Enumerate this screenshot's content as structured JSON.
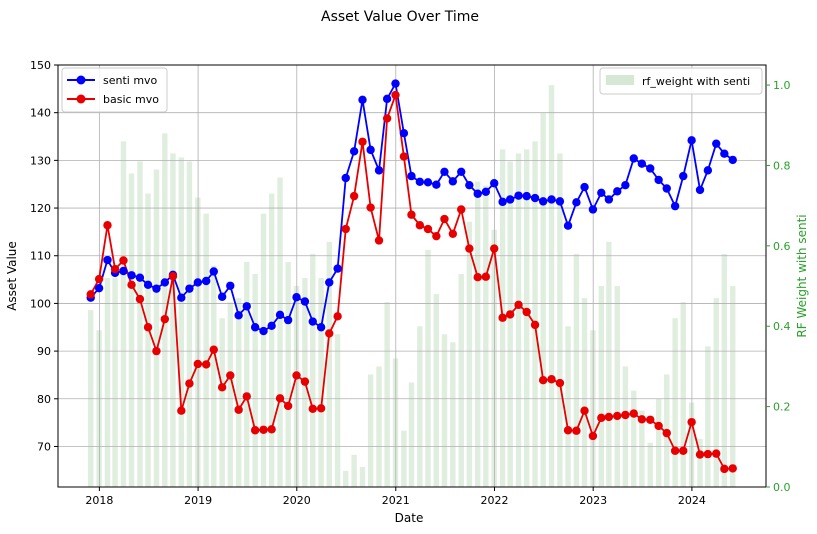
{
  "chart_data": {
    "type": "line",
    "title": "Asset Value Over Time",
    "xlabel": "Date",
    "ylabel": "Asset Value",
    "y2label": "RF Weight with senti",
    "ylim": [
      61.5,
      150
    ],
    "y2lim": [
      0,
      1.05
    ],
    "xlim": [
      "2017-08-01",
      "2024-10-01"
    ],
    "grid": true,
    "x_ticks": [
      {
        "date": "2018-01-01",
        "label": "2018"
      },
      {
        "date": "2019-01-01",
        "label": "2019"
      },
      {
        "date": "2020-01-01",
        "label": "2020"
      },
      {
        "date": "2021-01-01",
        "label": "2021"
      },
      {
        "date": "2022-01-01",
        "label": "2022"
      },
      {
        "date": "2023-01-01",
        "label": "2023"
      },
      {
        "date": "2024-01-01",
        "label": "2024"
      }
    ],
    "y_ticks": [
      70,
      80,
      90,
      100,
      110,
      120,
      130,
      140,
      150
    ],
    "y2_ticks": [
      {
        "value": 0.0,
        "label": "0.0"
      },
      {
        "value": 0.2,
        "label": "0.2"
      },
      {
        "value": 0.4,
        "label": "0.4"
      },
      {
        "value": 0.6,
        "label": "0.6"
      },
      {
        "value": 0.8,
        "label": "0.8"
      },
      {
        "value": 1.0,
        "label": "1.0"
      }
    ],
    "dates": [
      "2017-11-30",
      "2017-12-31",
      "2018-01-31",
      "2018-02-28",
      "2018-03-31",
      "2018-04-30",
      "2018-05-31",
      "2018-06-30",
      "2018-07-31",
      "2018-08-31",
      "2018-09-30",
      "2018-10-31",
      "2018-11-30",
      "2018-12-31",
      "2019-01-31",
      "2019-02-28",
      "2019-03-31",
      "2019-04-30",
      "2019-05-31",
      "2019-06-30",
      "2019-07-31",
      "2019-08-31",
      "2019-09-30",
      "2019-10-31",
      "2019-11-30",
      "2019-12-31",
      "2020-01-31",
      "2020-02-29",
      "2020-03-31",
      "2020-04-30",
      "2020-05-31",
      "2020-06-30",
      "2020-07-31",
      "2020-08-31",
      "2020-09-30",
      "2020-10-31",
      "2020-11-30",
      "2020-12-31",
      "2021-01-31",
      "2021-02-28",
      "2021-03-31",
      "2021-04-30",
      "2021-05-31",
      "2021-06-30",
      "2021-07-31",
      "2021-08-31",
      "2021-09-30",
      "2021-10-31",
      "2021-11-30",
      "2021-12-31",
      "2022-01-31",
      "2022-02-28",
      "2022-03-31",
      "2022-04-30",
      "2022-05-31",
      "2022-06-30",
      "2022-07-31",
      "2022-08-31",
      "2022-09-30",
      "2022-10-31",
      "2022-11-30",
      "2022-12-31",
      "2023-01-31",
      "2023-02-28",
      "2023-03-31",
      "2023-04-30",
      "2023-05-31",
      "2023-06-30",
      "2023-07-31",
      "2023-08-31",
      "2023-09-30",
      "2023-10-31",
      "2023-11-30",
      "2023-12-31",
      "2024-01-31",
      "2024-02-29",
      "2024-03-31",
      "2024-04-30",
      "2024-05-31"
    ],
    "series": [
      {
        "name": "senti mvo",
        "color": "#0000ff",
        "values": [
          101.2,
          103.2,
          109.1,
          106.4,
          106.8,
          105.9,
          105.4,
          103.9,
          103.1,
          104.4,
          106.0,
          101.2,
          103.1,
          104.4,
          104.7,
          106.7,
          101.4,
          103.7,
          97.5,
          99.4,
          95.0,
          94.2,
          95.3,
          97.6,
          96.5,
          101.3,
          100.4,
          96.2,
          95.0,
          104.4,
          107.3,
          126.3,
          131.9,
          142.7,
          132.2,
          127.9,
          142.9,
          146.1,
          135.7,
          126.7,
          125.5,
          125.4,
          124.9,
          127.6,
          125.6,
          127.6,
          124.8,
          123.0,
          123.4,
          125.2,
          121.3,
          121.8,
          122.6,
          122.5,
          122.1,
          121.4,
          121.8,
          121.4,
          116.3,
          121.2,
          124.4,
          119.7,
          123.2,
          121.8,
          123.5,
          124.8,
          130.4,
          129.3,
          128.3,
          125.9,
          124.1,
          120.4,
          126.7,
          134.2,
          123.8,
          127.9,
          133.5,
          131.4,
          130.1
        ]
      },
      {
        "name": "basic mvo",
        "color": "#e80000",
        "values": [
          101.9,
          105.1,
          116.4,
          107.2,
          109.0,
          103.9,
          100.9,
          95.0,
          90.0,
          96.7,
          105.7,
          77.5,
          83.2,
          87.3,
          87.2,
          90.3,
          82.4,
          84.9,
          77.7,
          80.5,
          73.4,
          73.5,
          73.6,
          80.1,
          78.5,
          84.9,
          83.6,
          77.9,
          78.0,
          93.7,
          97.3,
          115.6,
          122.5,
          133.9,
          120.1,
          113.2,
          138.8,
          143.7,
          130.8,
          118.6,
          116.4,
          115.6,
          114.1,
          117.7,
          114.6,
          119.7,
          111.5,
          105.5,
          105.6,
          111.5,
          97.0,
          97.7,
          99.7,
          98.2,
          95.5,
          83.9,
          84.1,
          83.3,
          73.4,
          73.3,
          77.5,
          72.2,
          76.0,
          76.2,
          76.4,
          76.6,
          76.9,
          75.7,
          75.6,
          74.3,
          72.8,
          69.1,
          69.1,
          75.1,
          68.3,
          68.4,
          68.5,
          65.3,
          65.4
        ]
      }
    ],
    "bars": {
      "name": "rf_weight with senti",
      "color": "#d5e8d4",
      "values": [
        0.44,
        0.39,
        0.52,
        0.52,
        0.86,
        0.78,
        0.81,
        0.73,
        0.79,
        0.88,
        0.83,
        0.82,
        0.81,
        0.72,
        0.68,
        0.55,
        0.42,
        0.46,
        0.47,
        0.56,
        0.53,
        0.68,
        0.73,
        0.77,
        0.56,
        0.5,
        0.52,
        0.58,
        0.52,
        0.61,
        0.38,
        0.04,
        0.08,
        0.05,
        0.28,
        0.3,
        0.46,
        0.32,
        0.14,
        0.26,
        0.4,
        0.59,
        0.48,
        0.38,
        0.36,
        0.53,
        0.66,
        0.76,
        0.75,
        0.64,
        0.84,
        0.81,
        0.83,
        0.84,
        0.86,
        0.93,
        1.0,
        0.83,
        0.4,
        0.58,
        0.47,
        0.39,
        0.5,
        0.61,
        0.5,
        0.3,
        0.24,
        0.19,
        0.11,
        0.22,
        0.28,
        0.42,
        0.46,
        0.21,
        0.12,
        0.35,
        0.47,
        0.58,
        0.5
      ]
    },
    "legend_left": {
      "position": "upper-left",
      "entries": [
        "senti mvo",
        "basic mvo"
      ]
    },
    "legend_right": {
      "position": "upper-right",
      "entries": [
        "rf_weight with senti"
      ]
    },
    "y2_color": "#2ca02c"
  }
}
